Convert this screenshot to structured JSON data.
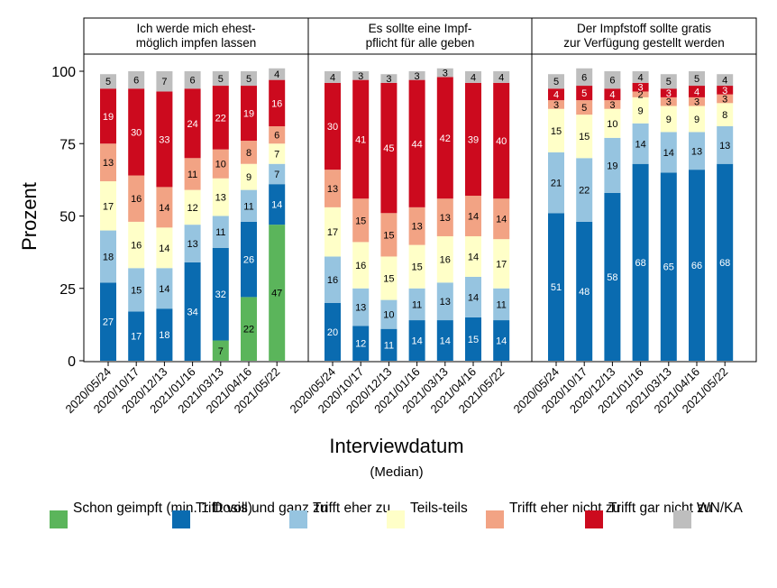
{
  "chart_data": {
    "type": "bar",
    "stacked": true,
    "ylabel": "Prozent",
    "xlabel": "Interviewdatum",
    "xlabel_sub": "(Median)",
    "yticks": [
      0,
      25,
      50,
      75,
      100
    ],
    "ylim": [
      0,
      100
    ],
    "categories": [
      "2020/05/24",
      "2020/10/17",
      "2020/12/13",
      "2021/01/16",
      "2021/03/13",
      "2021/04/16",
      "2021/05/22"
    ],
    "legend_position": "bottom",
    "series_meta": [
      {
        "key": "schon",
        "name": "Schon geimpft (min. 1 Dosis)",
        "color": "#5BB55B"
      },
      {
        "key": "voll",
        "name": "Trifft voll und ganz zu",
        "color": "#0A6BB0"
      },
      {
        "key": "eher",
        "name": "Trifft eher zu",
        "color": "#96C4E0"
      },
      {
        "key": "teils",
        "name": "Teils-teils",
        "color": "#FFFFC8"
      },
      {
        "key": "ehernicht",
        "name": "Trifft eher nicht zu",
        "color": "#F2A384"
      },
      {
        "key": "garnicht",
        "name": "Trifft gar nicht zu",
        "color": "#CC0A1E"
      },
      {
        "key": "wnka",
        "name": "WN/KA",
        "color": "#BEBEBE"
      }
    ],
    "panels": [
      {
        "title": "Ich werde mich ehest-\nmöglich impfen lassen",
        "series": [
          {
            "key": "schon",
            "values": [
              null,
              null,
              null,
              null,
              7,
              22,
              47
            ]
          },
          {
            "key": "voll",
            "values": [
              27,
              17,
              18,
              34,
              32,
              26,
              14
            ]
          },
          {
            "key": "eher",
            "values": [
              18,
              15,
              14,
              13,
              11,
              11,
              7
            ]
          },
          {
            "key": "teils",
            "values": [
              17,
              16,
              14,
              12,
              13,
              9,
              7
            ]
          },
          {
            "key": "ehernicht",
            "values": [
              13,
              16,
              14,
              11,
              10,
              8,
              6
            ]
          },
          {
            "key": "garnicht",
            "values": [
              19,
              30,
              33,
              24,
              22,
              19,
              16
            ]
          },
          {
            "key": "wnka",
            "values": [
              5,
              6,
              7,
              6,
              5,
              5,
              4
            ]
          }
        ]
      },
      {
        "title": "Es sollte eine Impf-\npflicht für alle geben",
        "series": [
          {
            "key": "voll",
            "values": [
              20,
              12,
              11,
              14,
              14,
              15,
              14
            ]
          },
          {
            "key": "eher",
            "values": [
              16,
              13,
              10,
              11,
              13,
              14,
              11
            ]
          },
          {
            "key": "teils",
            "values": [
              17,
              16,
              15,
              15,
              16,
              14,
              17
            ]
          },
          {
            "key": "ehernicht",
            "values": [
              13,
              15,
              15,
              13,
              13,
              14,
              14
            ]
          },
          {
            "key": "garnicht",
            "values": [
              30,
              41,
              45,
              44,
              42,
              39,
              40
            ]
          },
          {
            "key": "wnka",
            "values": [
              4,
              3,
              3,
              3,
              3,
              4,
              4
            ]
          }
        ]
      },
      {
        "title": "Der Impfstoff sollte gratis\nzur Verfügung gestellt werden",
        "series": [
          {
            "key": "voll",
            "values": [
              51,
              48,
              58,
              68,
              65,
              66,
              68
            ]
          },
          {
            "key": "eher",
            "values": [
              21,
              22,
              19,
              14,
              14,
              13,
              13
            ]
          },
          {
            "key": "teils",
            "values": [
              15,
              15,
              10,
              9,
              9,
              9,
              8
            ]
          },
          {
            "key": "ehernicht",
            "values": [
              3,
              5,
              3,
              2,
              3,
              3,
              3
            ]
          },
          {
            "key": "garnicht",
            "values": [
              4,
              5,
              4,
              3,
              3,
              4,
              3
            ]
          },
          {
            "key": "wnka",
            "values": [
              5,
              6,
              6,
              4,
              5,
              5,
              4
            ]
          }
        ]
      }
    ]
  }
}
